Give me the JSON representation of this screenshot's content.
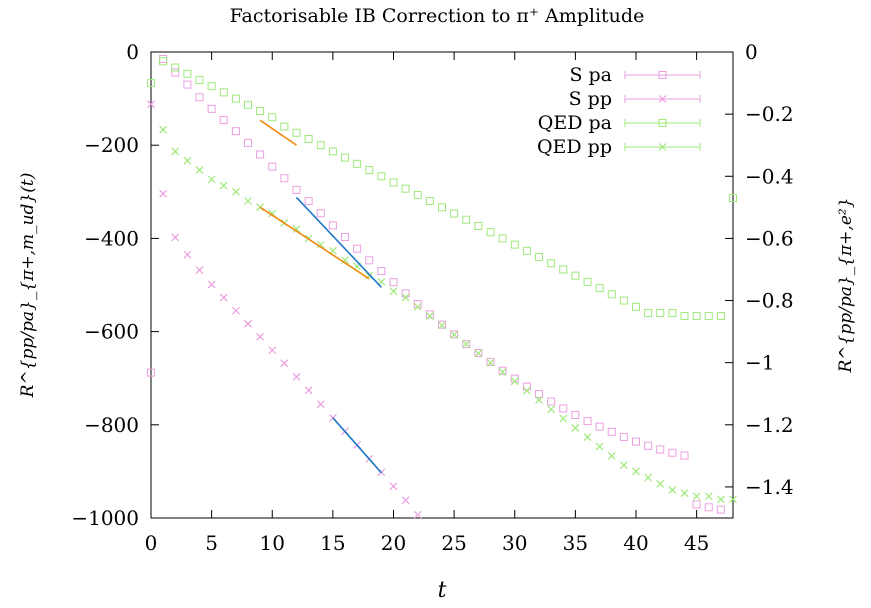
{
  "chart_data": {
    "type": "scatter",
    "title": "Factorisable IB Correction to π⁺ Amplitude",
    "xlabel": "t",
    "ylabel": "R^{pp/pa}_{π+,m_ud}(t)",
    "ylabel_right": "R^{pp/pa}_{π+,e²}",
    "xlim": [
      0,
      48
    ],
    "ylim": [
      -1000,
      0
    ],
    "y2lim": [
      -1.5,
      0
    ],
    "x_ticks": [
      0,
      5,
      10,
      15,
      20,
      25,
      30,
      35,
      40,
      45
    ],
    "y_ticks": [
      0,
      -200,
      -400,
      -600,
      -800,
      -1000
    ],
    "y2_ticks": [
      0,
      -0.2,
      -0.4,
      -0.6,
      -0.8,
      -1,
      -1.2,
      -1.4
    ],
    "legend_position": "top-right",
    "series": [
      {
        "name": "S pa",
        "axis": "left",
        "color": "#ea9fe0",
        "marker": "square",
        "x": [
          0,
          1,
          2,
          3,
          4,
          5,
          6,
          7,
          8,
          9,
          10,
          11,
          12,
          13,
          14,
          15,
          16,
          17,
          18,
          19,
          20,
          21,
          22,
          23,
          24,
          25,
          26,
          27,
          28,
          29,
          30,
          31,
          32,
          33,
          34,
          35,
          36,
          37,
          38,
          39,
          40,
          41,
          42,
          43,
          44,
          45,
          46,
          47
        ],
        "y": [
          -688,
          -15,
          -44,
          -70,
          -97,
          -122,
          -146,
          -170,
          -195,
          -220,
          -246,
          -271,
          -296,
          -320,
          -346,
          -372,
          -397,
          -422,
          -447,
          -470,
          -494,
          -518,
          -541,
          -563,
          -585,
          -606,
          -627,
          -646,
          -665,
          -684,
          -701,
          -718,
          -734,
          -750,
          -765,
          -779,
          -792,
          -804,
          -815,
          -826,
          -836,
          -845,
          -853,
          -860,
          -866,
          -971,
          -977,
          -982
        ]
      },
      {
        "name": "S pp",
        "axis": "left",
        "color": "#ea9fe0",
        "marker": "cross",
        "x": [
          0,
          1,
          2,
          3,
          4,
          5,
          6,
          7,
          8,
          9,
          10,
          11,
          12,
          13,
          14,
          15,
          16,
          17,
          18,
          19,
          20,
          21,
          22
        ],
        "y": [
          -112,
          -304,
          -398,
          -435,
          -468,
          -499,
          -527,
          -555,
          -583,
          -611,
          -640,
          -668,
          -697,
          -726,
          -756,
          -785,
          -814,
          -843,
          -873,
          -902,
          -932,
          -962,
          -993
        ]
      },
      {
        "name": "QED pa",
        "axis": "right",
        "color": "#9fe87a",
        "marker": "square",
        "x": [
          0,
          1,
          2,
          3,
          4,
          5,
          6,
          7,
          8,
          9,
          10,
          11,
          12,
          13,
          14,
          15,
          16,
          17,
          18,
          19,
          20,
          21,
          22,
          23,
          24,
          25,
          26,
          27,
          28,
          29,
          30,
          31,
          32,
          33,
          34,
          35,
          36,
          37,
          38,
          39,
          40,
          41,
          42,
          43,
          44,
          45,
          46,
          47,
          48
        ],
        "y": [
          -0.1,
          -0.03,
          -0.05,
          -0.07,
          -0.09,
          -0.11,
          -0.13,
          -0.15,
          -0.17,
          -0.19,
          -0.21,
          -0.24,
          -0.26,
          -0.28,
          -0.3,
          -0.32,
          -0.34,
          -0.36,
          -0.38,
          -0.4,
          -0.42,
          -0.44,
          -0.46,
          -0.48,
          -0.5,
          -0.52,
          -0.54,
          -0.56,
          -0.58,
          -0.6,
          -0.62,
          -0.64,
          -0.66,
          -0.68,
          -0.7,
          -0.72,
          -0.74,
          -0.76,
          -0.78,
          -0.8,
          -0.82,
          -0.84,
          -0.84,
          -0.84,
          -0.85,
          -0.85,
          -0.85,
          -0.85,
          -0.47
        ]
      },
      {
        "name": "QED pp",
        "axis": "right",
        "color": "#9fe87a",
        "marker": "cross",
        "x": [
          1,
          2,
          3,
          4,
          5,
          6,
          7,
          8,
          9,
          10,
          11,
          12,
          13,
          14,
          15,
          16,
          17,
          18,
          19,
          20,
          21,
          22,
          23,
          24,
          25,
          26,
          27,
          28,
          29,
          30,
          31,
          32,
          33,
          34,
          35,
          36,
          37,
          38,
          39,
          40,
          41,
          42,
          43,
          44,
          45,
          46,
          47,
          48
        ],
        "y": [
          -0.25,
          -0.32,
          -0.35,
          -0.38,
          -0.41,
          -0.43,
          -0.45,
          -0.48,
          -0.5,
          -0.52,
          -0.55,
          -0.57,
          -0.6,
          -0.62,
          -0.64,
          -0.67,
          -0.69,
          -0.72,
          -0.74,
          -0.77,
          -0.79,
          -0.82,
          -0.85,
          -0.88,
          -0.91,
          -0.94,
          -0.97,
          -1.0,
          -1.03,
          -1.06,
          -1.09,
          -1.12,
          -1.15,
          -1.18,
          -1.21,
          -1.24,
          -1.27,
          -1.3,
          -1.33,
          -1.35,
          -1.37,
          -1.39,
          -1.41,
          -1.42,
          -1.43,
          -1.43,
          -1.44,
          -1.44
        ]
      }
    ],
    "fits": [
      {
        "axis": "left",
        "color": "#1f78c8",
        "x": [
          12,
          19
        ],
        "y": [
          -312,
          -505
        ]
      },
      {
        "axis": "left",
        "color": "#1f78c8",
        "x": [
          15,
          19
        ],
        "y": [
          -785,
          -903
        ]
      },
      {
        "axis": "right",
        "color": "#f08a10",
        "x": [
          9,
          12
        ],
        "y": [
          -0.22,
          -0.3
        ]
      },
      {
        "axis": "right",
        "color": "#f08a10",
        "x": [
          9,
          18
        ],
        "y": [
          -0.5,
          -0.73
        ]
      }
    ]
  }
}
